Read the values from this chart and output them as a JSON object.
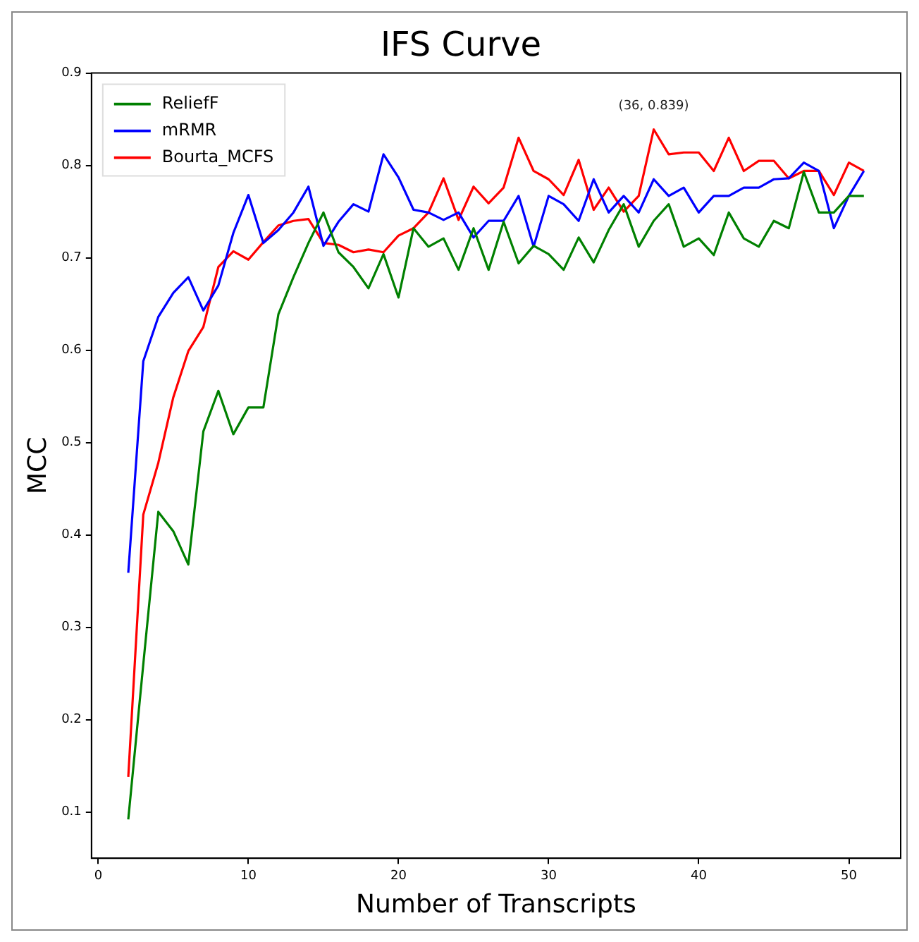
{
  "chart_data": {
    "type": "line",
    "title": "IFS Curve",
    "xlabel": "Number of Transcripts",
    "ylabel": "MCC",
    "x": [
      2,
      3,
      4,
      5,
      6,
      7,
      8,
      9,
      10,
      11,
      12,
      13,
      14,
      15,
      16,
      17,
      18,
      19,
      20,
      21,
      22,
      23,
      24,
      25,
      26,
      27,
      28,
      29,
      30,
      31,
      32,
      33,
      34,
      35,
      36,
      37,
      38,
      39,
      40,
      41,
      42,
      43,
      44,
      45,
      46,
      47,
      48,
      49,
      50,
      51
    ],
    "series": [
      {
        "name": "ReliefF",
        "color": "#008000",
        "values": [
          0.092,
          0.26,
          0.425,
          0.404,
          0.368,
          0.512,
          0.556,
          0.509,
          0.538,
          0.538,
          0.639,
          0.679,
          0.716,
          0.749,
          0.706,
          0.69,
          0.667,
          0.704,
          0.657,
          0.732,
          0.712,
          0.721,
          0.687,
          0.732,
          0.687,
          0.739,
          0.694,
          0.713,
          0.704,
          0.687,
          0.722,
          0.695,
          0.73,
          0.758,
          0.712,
          0.74,
          0.758,
          0.712,
          0.721,
          0.703,
          0.749,
          0.721,
          0.712,
          0.74,
          0.732,
          0.793,
          0.749,
          0.749,
          0.767,
          0.767
        ]
      },
      {
        "name": "mRMR",
        "color": "#0000ff",
        "values": [
          0.359,
          0.588,
          0.636,
          0.662,
          0.679,
          0.643,
          0.67,
          0.727,
          0.768,
          0.716,
          0.73,
          0.749,
          0.777,
          0.713,
          0.739,
          0.758,
          0.75,
          0.812,
          0.787,
          0.752,
          0.749,
          0.741,
          0.749,
          0.722,
          0.74,
          0.74,
          0.767,
          0.712,
          0.767,
          0.758,
          0.74,
          0.785,
          0.749,
          0.767,
          0.749,
          0.785,
          0.767,
          0.776,
          0.749,
          0.767,
          0.767,
          0.776,
          0.776,
          0.785,
          0.786,
          0.803,
          0.794,
          0.732,
          0.767,
          0.794
        ]
      },
      {
        "name": "Bourta_MCFS",
        "color": "#ff0000",
        "values": [
          0.138,
          0.422,
          0.478,
          0.549,
          0.599,
          0.625,
          0.69,
          0.707,
          0.698,
          0.717,
          0.735,
          0.74,
          0.742,
          0.716,
          0.714,
          0.706,
          0.709,
          0.706,
          0.724,
          0.732,
          0.749,
          0.786,
          0.741,
          0.777,
          0.759,
          0.776,
          0.83,
          0.794,
          0.785,
          0.768,
          0.806,
          0.752,
          0.776,
          0.75,
          0.767,
          0.839,
          0.812,
          0.814,
          0.814,
          0.794,
          0.83,
          0.794,
          0.805,
          0.805,
          0.786,
          0.794,
          0.794,
          0.768,
          0.803,
          0.794
        ]
      }
    ],
    "xlim": [
      -0.45,
      53.45
    ],
    "xticks": [
      0,
      10,
      20,
      30,
      40,
      50
    ],
    "ylim": [
      0.05,
      0.9
    ],
    "yticks": [
      0.1,
      0.2,
      0.3,
      0.4,
      0.5,
      0.6,
      0.7,
      0.8,
      0.9
    ],
    "annotations": [
      {
        "text": "(36, 0.839)",
        "x": 37,
        "y": 0.839
      }
    ],
    "legend": "top left",
    "marker": "none",
    "line_style": "solid",
    "grid": false
  }
}
